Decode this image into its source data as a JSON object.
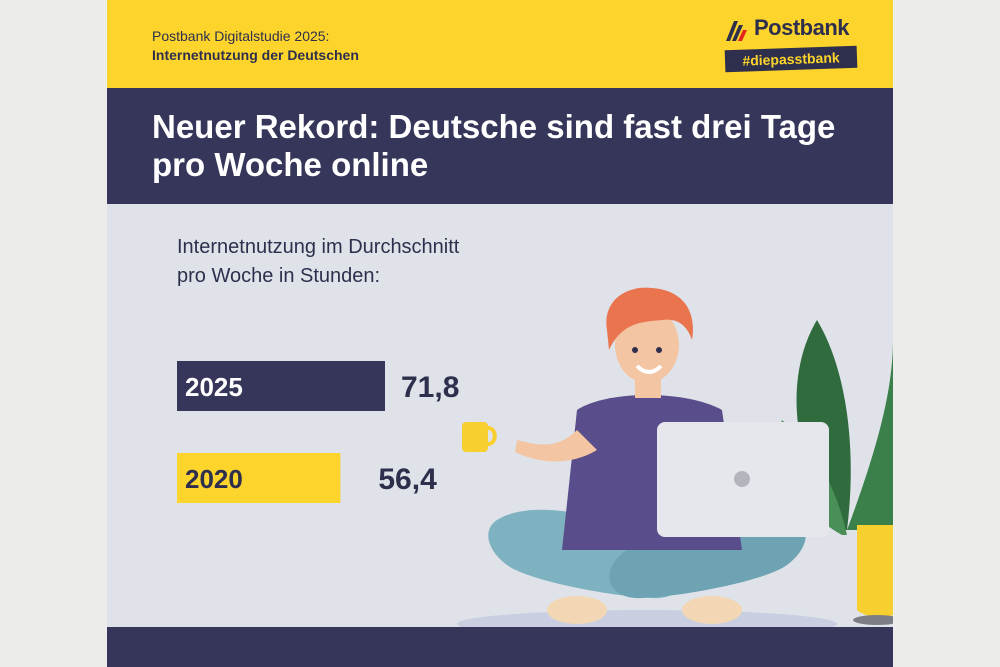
{
  "header": {
    "study_line1": "Postbank Digitalstudie 2025:",
    "study_line2": "Internetnutzung der Deutschen",
    "logo_text": "Postbank",
    "hashtag": "#diepasstbank"
  },
  "headline": {
    "line1": "Neuer Rekord: Deutsche sind fast drei Tage",
    "line2": "pro Woche online"
  },
  "chart_data": {
    "type": "bar",
    "orientation": "horizontal",
    "title": "Internetnutzung im Durchschnitt pro Woche in Stunden:",
    "title_lines": [
      "Internetnutzung im Durchschnitt",
      "pro Woche in Stunden:"
    ],
    "categories": [
      "2025",
      "2020"
    ],
    "values": [
      71.8,
      56.4
    ],
    "value_labels": [
      "71,8",
      "56,4"
    ],
    "bar_colors": [
      "#353659",
      "#fdd42c"
    ],
    "category_label_colors": [
      "#ffffff",
      "#2d2f4c"
    ],
    "grid": false,
    "legend": "none"
  },
  "colors": {
    "navy": "#353659",
    "yellow": "#fdd42c",
    "background": "#dfe3e9"
  },
  "illustration_icons": [
    "person-with-laptop-icon",
    "plant-icon"
  ]
}
